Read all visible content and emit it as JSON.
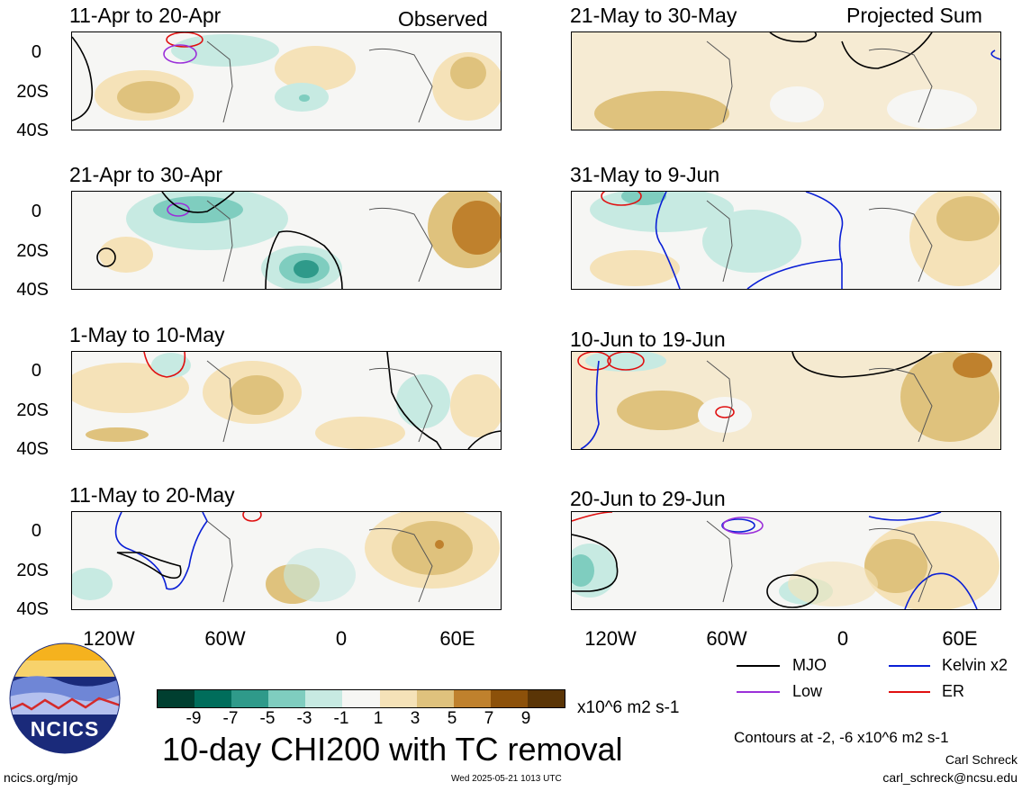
{
  "figure": {
    "title": "10-day CHI200 with TC removal",
    "observed_label": "Observed",
    "projected_label": "Projected Sum",
    "units": "x10^6 m2 s-1",
    "contour_note": "Contours at -2, -6 x10^6 m2 s-1",
    "author": "Carl Schreck",
    "email": "carl_schreck@ncsu.edu",
    "site": "ncics.org/mjo",
    "timestamp": "Wed 2025-05-21 1013 UTC",
    "logo_text": "NCICS"
  },
  "axes": {
    "lat_labels": [
      "0",
      "20S",
      "40S"
    ],
    "lon_labels": [
      "120W",
      "60W",
      "0",
      "60E"
    ]
  },
  "panels": {
    "observed": [
      {
        "title": "11-Apr to 20-Apr"
      },
      {
        "title": "21-Apr to 30-Apr"
      },
      {
        "title": "1-May to 10-May"
      },
      {
        "title": "11-May to 20-May"
      }
    ],
    "projected": [
      {
        "title": "21-May to 30-May"
      },
      {
        "title": "31-May to 9-Jun"
      },
      {
        "title": "10-Jun to 19-Jun"
      },
      {
        "title": "20-Jun to 29-Jun"
      }
    ]
  },
  "colorbar": {
    "ticks": [
      "-9",
      "-7",
      "-5",
      "-3",
      "-1",
      "1",
      "3",
      "5",
      "7",
      "9"
    ],
    "colors": [
      "#003f30",
      "#006d5b",
      "#2f9a8a",
      "#7fcdbf",
      "#c7eae2",
      "#f6f6f4",
      "#f5e2b8",
      "#dfc27d",
      "#bf812d",
      "#8c510a",
      "#5a3506"
    ]
  },
  "legend": {
    "mjo": {
      "label": "MJO",
      "color": "#000000"
    },
    "kelvin": {
      "label": "Kelvin x2",
      "color": "#0a1fd6"
    },
    "low": {
      "label": "Low",
      "color": "#9b30d9"
    },
    "er": {
      "label": "ER",
      "color": "#e01010"
    }
  }
}
